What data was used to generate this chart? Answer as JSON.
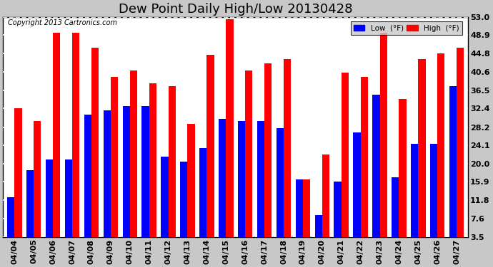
{
  "title": "Dew Point Daily High/Low 20130428",
  "copyright": "Copyright 2013 Cartronics.com",
  "dates": [
    "04/04",
    "04/05",
    "04/06",
    "04/07",
    "04/08",
    "04/09",
    "04/10",
    "04/11",
    "04/12",
    "04/13",
    "04/14",
    "04/15",
    "04/16",
    "04/17",
    "04/18",
    "04/19",
    "04/20",
    "04/21",
    "04/22",
    "04/23",
    "04/24",
    "04/25",
    "04/26",
    "04/27"
  ],
  "low_values": [
    12.5,
    18.5,
    21.0,
    21.0,
    31.0,
    32.0,
    33.0,
    33.0,
    21.5,
    20.5,
    23.5,
    30.0,
    29.5,
    29.5,
    28.0,
    16.5,
    8.5,
    16.0,
    27.0,
    35.5,
    17.0,
    24.5,
    24.5,
    37.5
  ],
  "high_values": [
    32.5,
    29.5,
    49.5,
    49.5,
    46.0,
    39.5,
    41.0,
    38.0,
    37.5,
    29.0,
    44.5,
    52.5,
    41.0,
    42.5,
    43.5,
    16.5,
    22.0,
    40.5,
    39.5,
    49.5,
    34.5,
    43.5,
    44.8,
    46.0
  ],
  "low_color": "#0000ff",
  "high_color": "#ff0000",
  "fig_bg_color": "#c8c8c8",
  "plot_bg_color": "#ffffff",
  "ylim": [
    3.5,
    53.0
  ],
  "yticks": [
    3.5,
    7.6,
    11.8,
    15.9,
    20.0,
    24.1,
    28.2,
    32.4,
    36.5,
    40.6,
    44.8,
    48.9,
    53.0
  ],
  "grid_color": "#aaaaaa",
  "legend_low_label": "Low  (°F)",
  "legend_high_label": "High  (°F)",
  "title_fontsize": 13,
  "tick_fontsize": 8,
  "bar_width": 0.38,
  "figsize": [
    6.9,
    3.75
  ],
  "dpi": 100
}
